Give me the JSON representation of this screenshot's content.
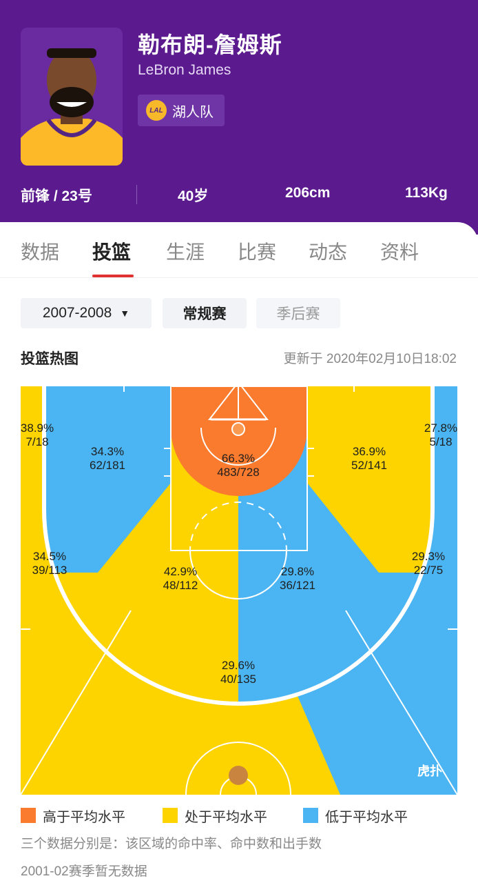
{
  "player": {
    "name_cn": "勒布朗-詹姆斯",
    "name_en": "LeBron James",
    "team": "湖人队",
    "position": "前锋 / 23号",
    "age": "40岁",
    "height": "206cm",
    "weight": "113Kg",
    "team_logo_text": "LAL"
  },
  "tabs": [
    "数据",
    "投篮",
    "生涯",
    "比赛",
    "动态",
    "资料"
  ],
  "active_tab": "投篮",
  "filters": {
    "season": "2007-2008",
    "regular": "常规赛",
    "playoff": "季后赛"
  },
  "section": {
    "title": "投篮热图",
    "update": "更新于 2020年02月10日18:02"
  },
  "zones": [
    {
      "id": "left-corner",
      "pct": "38.9%",
      "ratio": "7/18",
      "level": "avg"
    },
    {
      "id": "left-baseline-mid",
      "pct": "34.3%",
      "ratio": "62/181",
      "level": "below"
    },
    {
      "id": "paint",
      "pct": "66.3%",
      "ratio": "483/728",
      "level": "above"
    },
    {
      "id": "right-baseline-mid",
      "pct": "36.9%",
      "ratio": "52/141",
      "level": "avg"
    },
    {
      "id": "right-corner",
      "pct": "27.8%",
      "ratio": "5/18",
      "level": "below"
    },
    {
      "id": "left-wing-three",
      "pct": "34.5%",
      "ratio": "39/113",
      "level": "avg"
    },
    {
      "id": "left-elbow",
      "pct": "42.9%",
      "ratio": "48/112",
      "level": "avg"
    },
    {
      "id": "right-elbow",
      "pct": "29.8%",
      "ratio": "36/121",
      "level": "below"
    },
    {
      "id": "right-wing-three",
      "pct": "29.3%",
      "ratio": "22/75",
      "level": "below"
    },
    {
      "id": "top-three",
      "pct": "29.6%",
      "ratio": "40/135",
      "level": "avg"
    }
  ],
  "colors": {
    "above": "#fa7b2e",
    "avg": "#fdd400",
    "below": "#4bb5f3",
    "header_bg": "#5b1b8f"
  },
  "legend": {
    "above": "高于平均水平",
    "avg": "处于平均水平",
    "below": "低于平均水平"
  },
  "watermark": "虎扑",
  "notes": {
    "line1": "三个数据分别是：该区域的命中率、命中数和出手数",
    "line2": "2001-02赛季暂无数据"
  }
}
